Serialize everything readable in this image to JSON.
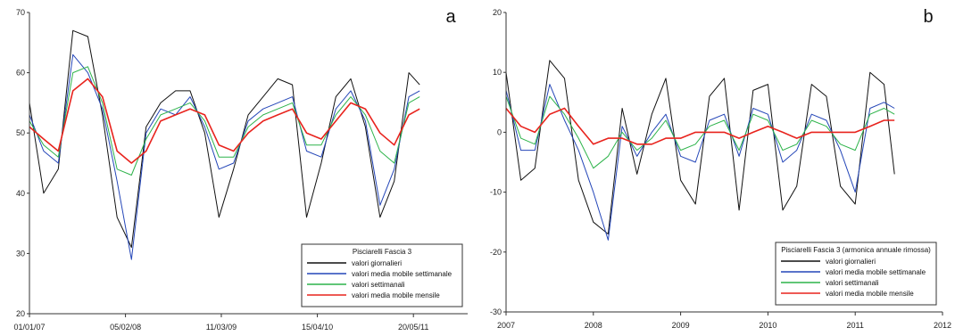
{
  "chart_data": [
    {
      "type": "line",
      "panel_label": "a",
      "title": "",
      "xlabel": "",
      "ylabel": "",
      "xlim": [
        "2007-01-01",
        "2012-01-01"
      ],
      "ylim": [
        20,
        70
      ],
      "yticks": [
        20,
        30,
        40,
        50,
        60,
        70
      ],
      "xtick_labels": [
        "01/01/07",
        "05/02/08",
        "11/03/09",
        "15/04/10",
        "20/05/11"
      ],
      "xtick_dates": [
        "2007-01-01",
        "2008-02-05",
        "2009-03-11",
        "2010-04-15",
        "2011-05-20"
      ],
      "legend": {
        "title": "Pisciarelli Fascia 3",
        "position": "bottom-right",
        "entries": [
          "valori giornalieri",
          "valori media mobile settimanale",
          "valori settimanali",
          "valori media mobile mensile"
        ]
      },
      "series": [
        {
          "name": "valori media mobile mensile",
          "color": "#e8231d",
          "x": [
            "2007-01-01",
            "2007-03-01",
            "2007-05-01",
            "2007-07-01",
            "2007-09-01",
            "2007-11-01",
            "2008-01-01",
            "2008-03-01",
            "2008-05-01",
            "2008-07-01",
            "2008-09-01",
            "2008-11-01",
            "2009-01-01",
            "2009-03-01",
            "2009-05-01",
            "2009-07-01",
            "2009-09-01",
            "2009-11-01",
            "2010-01-01",
            "2010-03-01",
            "2010-05-01",
            "2010-07-01",
            "2010-09-01",
            "2010-11-01",
            "2011-01-01",
            "2011-03-01",
            "2011-05-01",
            "2011-06-15"
          ],
          "y": [
            51,
            49,
            47,
            57,
            59,
            56,
            47,
            45,
            47,
            52,
            53,
            54,
            53,
            48,
            47,
            50,
            52,
            53,
            54,
            50,
            49,
            52,
            55,
            54,
            50,
            48,
            53,
            54
          ]
        },
        {
          "name": "valori settimanali",
          "color": "#2db34a",
          "x": [
            "2007-01-01",
            "2007-03-01",
            "2007-05-01",
            "2007-07-01",
            "2007-09-01",
            "2007-11-01",
            "2008-01-01",
            "2008-03-01",
            "2008-05-01",
            "2008-07-01",
            "2008-09-01",
            "2008-11-01",
            "2009-01-01",
            "2009-03-01",
            "2009-05-01",
            "2009-07-01",
            "2009-09-01",
            "2009-11-01",
            "2010-01-01",
            "2010-03-01",
            "2010-05-01",
            "2010-07-01",
            "2010-09-01",
            "2010-11-01",
            "2011-01-01",
            "2011-03-01",
            "2011-05-01",
            "2011-06-15"
          ],
          "y": [
            52,
            48,
            46,
            60,
            61,
            55,
            44,
            43,
            49,
            53,
            54,
            55,
            52,
            46,
            46,
            51,
            53,
            54,
            55,
            48,
            48,
            53,
            56,
            53,
            47,
            45,
            55,
            56
          ]
        },
        {
          "name": "valori media mobile settimanale",
          "color": "#2446b8",
          "x": [
            "2007-01-01",
            "2007-03-01",
            "2007-05-01",
            "2007-07-01",
            "2007-09-01",
            "2007-11-01",
            "2008-01-01",
            "2008-03-01",
            "2008-05-01",
            "2008-07-01",
            "2008-09-01",
            "2008-11-01",
            "2009-01-01",
            "2009-03-01",
            "2009-05-01",
            "2009-07-01",
            "2009-09-01",
            "2009-11-01",
            "2010-01-01",
            "2010-03-01",
            "2010-05-01",
            "2010-07-01",
            "2010-09-01",
            "2010-11-01",
            "2011-01-01",
            "2011-03-01",
            "2011-05-01",
            "2011-06-15"
          ],
          "y": [
            53,
            47,
            45,
            63,
            60,
            54,
            42,
            29,
            50,
            54,
            53,
            56,
            51,
            44,
            45,
            52,
            54,
            55,
            56,
            47,
            46,
            54,
            57,
            52,
            38,
            44,
            56,
            57
          ]
        },
        {
          "name": "valori giornalieri",
          "color": "#111111",
          "x": [
            "2007-01-01",
            "2007-03-01",
            "2007-05-01",
            "2007-07-01",
            "2007-09-01",
            "2007-11-01",
            "2008-01-01",
            "2008-03-01",
            "2008-05-01",
            "2008-07-01",
            "2008-09-01",
            "2008-11-01",
            "2009-01-01",
            "2009-03-01",
            "2009-05-01",
            "2009-07-01",
            "2009-09-01",
            "2009-11-01",
            "2010-01-01",
            "2010-03-01",
            "2010-05-01",
            "2010-07-01",
            "2010-09-01",
            "2010-11-01",
            "2011-01-01",
            "2011-03-01",
            "2011-05-01",
            "2011-06-15"
          ],
          "y": [
            55,
            40,
            44,
            67,
            66,
            53,
            36,
            31,
            51,
            55,
            57,
            57,
            50,
            36,
            44,
            53,
            56,
            59,
            58,
            36,
            45,
            56,
            59,
            51,
            36,
            42,
            60,
            58
          ]
        }
      ]
    },
    {
      "type": "line",
      "panel_label": "b",
      "title": "",
      "xlabel": "",
      "ylabel": "",
      "xlim": [
        2007,
        2012
      ],
      "ylim": [
        -30,
        20
      ],
      "yticks": [
        -30,
        -20,
        -10,
        0,
        10,
        20
      ],
      "xtick_labels": [
        "2007",
        "2008",
        "2009",
        "2010",
        "2011",
        "2012"
      ],
      "xtick_values": [
        2007,
        2008,
        2009,
        2010,
        2011,
        2012
      ],
      "legend": {
        "title": "Pisciarelli Fascia 3 (armonica annuale rimossa)",
        "position": "bottom-right",
        "entries": [
          "valori giornalieri",
          "valori media mobile settimanale",
          "valori settimanali",
          "valori media mobile mensile"
        ]
      },
      "series": [
        {
          "name": "valori media mobile mensile",
          "color": "#e8231d",
          "x": [
            2007.0,
            2007.17,
            2007.33,
            2007.5,
            2007.67,
            2007.83,
            2008.0,
            2008.17,
            2008.33,
            2008.5,
            2008.67,
            2008.83,
            2009.0,
            2009.17,
            2009.33,
            2009.5,
            2009.67,
            2009.83,
            2010.0,
            2010.17,
            2010.33,
            2010.5,
            2010.67,
            2010.83,
            2011.0,
            2011.17,
            2011.33,
            2011.45
          ],
          "y": [
            4,
            1,
            0,
            3,
            4,
            1,
            -2,
            -1,
            -1,
            -2,
            -2,
            -1,
            -1,
            0,
            0,
            0,
            -1,
            0,
            1,
            0,
            -1,
            0,
            0,
            0,
            0,
            1,
            2,
            2
          ]
        },
        {
          "name": "valori settimanali",
          "color": "#2db34a",
          "x": [
            2007.0,
            2007.17,
            2007.33,
            2007.5,
            2007.67,
            2007.83,
            2008.0,
            2008.17,
            2008.33,
            2008.5,
            2008.67,
            2008.83,
            2009.0,
            2009.17,
            2009.33,
            2009.5,
            2009.67,
            2009.83,
            2010.0,
            2010.17,
            2010.33,
            2010.5,
            2010.67,
            2010.83,
            2011.0,
            2011.17,
            2011.33,
            2011.45
          ],
          "y": [
            6,
            -1,
            -2,
            6,
            3,
            -1,
            -6,
            -4,
            0,
            -3,
            -1,
            2,
            -3,
            -2,
            1,
            2,
            -3,
            3,
            2,
            -3,
            -2,
            2,
            1,
            -2,
            -3,
            3,
            4,
            3
          ]
        },
        {
          "name": "valori media mobile settimanale",
          "color": "#2446b8",
          "x": [
            2007.0,
            2007.17,
            2007.33,
            2007.5,
            2007.67,
            2007.83,
            2008.0,
            2008.17,
            2008.33,
            2008.5,
            2008.67,
            2008.83,
            2009.0,
            2009.17,
            2009.33,
            2009.5,
            2009.67,
            2009.83,
            2010.0,
            2010.17,
            2010.33,
            2010.5,
            2010.67,
            2010.83,
            2011.0,
            2011.17,
            2011.33,
            2011.45
          ],
          "y": [
            7,
            -3,
            -3,
            8,
            2,
            -3,
            -10,
            -18,
            1,
            -4,
            0,
            3,
            -4,
            -5,
            2,
            3,
            -4,
            4,
            3,
            -5,
            -3,
            3,
            2,
            -3,
            -10,
            4,
            5,
            4
          ]
        },
        {
          "name": "valori giornalieri",
          "color": "#111111",
          "x": [
            2007.0,
            2007.17,
            2007.33,
            2007.5,
            2007.67,
            2007.83,
            2008.0,
            2008.17,
            2008.33,
            2008.5,
            2008.67,
            2008.83,
            2009.0,
            2009.17,
            2009.33,
            2009.5,
            2009.67,
            2009.83,
            2010.0,
            2010.17,
            2010.33,
            2010.5,
            2010.67,
            2010.83,
            2011.0,
            2011.17,
            2011.33,
            2011.45
          ],
          "y": [
            10,
            -8,
            -6,
            12,
            9,
            -8,
            -15,
            -17,
            4,
            -7,
            3,
            9,
            -8,
            -12,
            6,
            9,
            -13,
            7,
            8,
            -13,
            -9,
            8,
            6,
            -9,
            -12,
            10,
            8,
            -7
          ]
        }
      ]
    }
  ]
}
